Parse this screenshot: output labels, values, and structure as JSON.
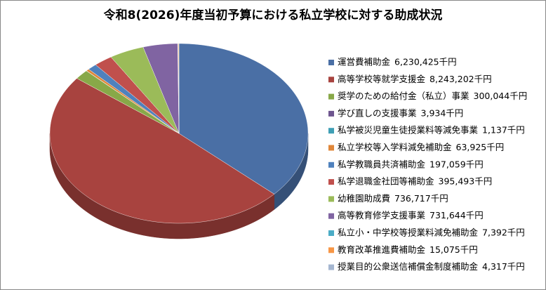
{
  "chart_data": {
    "type": "pie",
    "title": "令和8(2026)年度当初予算における私立学校に対する助成状況",
    "categories": [
      "運営費補助金",
      "高等学校等就学支援金",
      "奨学のための給付金（私立）事業",
      "学び直しの支援事業",
      "私学被災児童生徒授業料等減免事業",
      "私立学校等入学料減免補助金",
      "私学教職員共済補助金",
      "私学退職金社団等補助金",
      "幼稚園助成費",
      "高等教育修学支援事業",
      "私立小・中学校等授業料減免補助金",
      "教育改革推進費補助金",
      "授業目的公衆送信補償金制度補助金"
    ],
    "values": [
      6230425,
      8243202,
      300044,
      3934,
      1137,
      63925,
      197059,
      395493,
      736717,
      731644,
      7392,
      15075,
      4317
    ],
    "value_labels": [
      "6,230,425千円",
      "8,243,202千円",
      "300,044千円",
      "3,934千円",
      "1,137千円",
      "63,925千円",
      "197,059千円",
      "395,493千円",
      "736,717千円",
      "731,644千円",
      "7,392千円",
      "15,075千円",
      "4,317千円"
    ],
    "colors": [
      "#4a6fa5",
      "#a8433f",
      "#88a848",
      "#6e558f",
      "#3f9fb5",
      "#e0873a",
      "#4f81bd",
      "#c0504d",
      "#9bbb59",
      "#8064a2",
      "#4bacc6",
      "#f79646",
      "#a5b6d0"
    ],
    "legend": "right"
  }
}
